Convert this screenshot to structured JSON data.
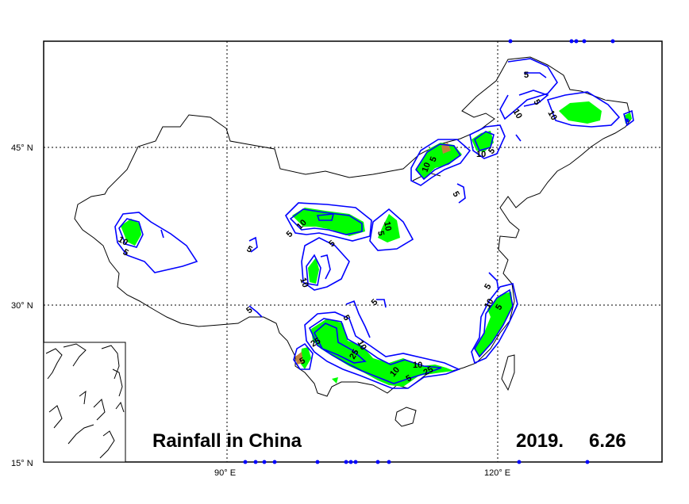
{
  "map": {
    "title": "Rainfall in China",
    "date_year": "2019.",
    "date_day": "6.26",
    "lat_ticks": [
      {
        "label": "45° N"
      },
      {
        "label": "30° N"
      },
      {
        "label": "15° N"
      }
    ],
    "lon_ticks": [
      {
        "label": "90° E"
      },
      {
        "label": "120° E"
      }
    ],
    "contour_labels": [
      "5",
      "10",
      "10",
      "5",
      "10",
      "5",
      "10",
      "5",
      "5",
      "10",
      "5",
      "5",
      "10",
      "5",
      "10",
      "5",
      "5",
      "5",
      "10",
      "5",
      "25",
      "5",
      "10",
      "25",
      "5",
      "10",
      "10",
      "5",
      "25",
      "5",
      "10",
      "5"
    ],
    "colors": {
      "contour_line": "#0000ff",
      "fill_10": "#00ff00",
      "fill_25": "#c08040",
      "coast": "#000000",
      "station_dot": "#0000ff"
    }
  }
}
